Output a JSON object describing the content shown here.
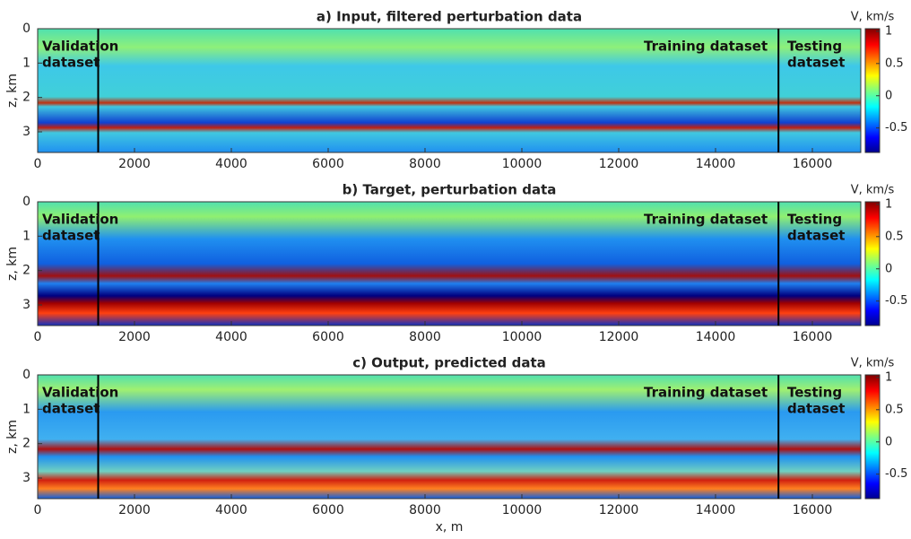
{
  "chart_data": [
    {
      "type": "heatmap",
      "title": "a) Input, filtered perturbation data",
      "ylabel": "z, km",
      "xlim": [
        0,
        17000
      ],
      "ylim": [
        0,
        3.6
      ],
      "y_inverted": true,
      "xticks": [
        0,
        2000,
        4000,
        6000,
        8000,
        10000,
        12000,
        14000,
        16000
      ],
      "yticks": [
        0,
        1,
        2,
        3
      ],
      "colormap": "jet",
      "colorbar": {
        "label": "V, km/s",
        "lim": [
          -0.88,
          1.04
        ],
        "ticks": [
          -0.5,
          0,
          0.5,
          1
        ]
      },
      "vlines": [
        1250,
        15300
      ],
      "annotations": [
        [
          "Validation",
          "dataset"
        ],
        [
          "Training dataset"
        ],
        [
          "Testing",
          "dataset"
        ]
      ]
    },
    {
      "type": "heatmap",
      "title": "b) Target, perturbation data",
      "ylabel": "z, km",
      "xlim": [
        0,
        17000
      ],
      "ylim": [
        0,
        3.6
      ],
      "y_inverted": true,
      "xticks": [
        0,
        2000,
        4000,
        6000,
        8000,
        10000,
        12000,
        14000,
        16000
      ],
      "yticks": [
        0,
        1,
        2,
        3
      ],
      "colormap": "jet",
      "colorbar": {
        "label": "V, km/s",
        "lim": [
          -0.88,
          1.04
        ],
        "ticks": [
          -0.5,
          0,
          0.5,
          1
        ]
      },
      "vlines": [
        1250,
        15300
      ],
      "annotations": [
        [
          "Validation",
          "dataset"
        ],
        [
          "Training dataset"
        ],
        [
          "Testing",
          "dataset"
        ]
      ]
    },
    {
      "type": "heatmap",
      "title": "c) Output, predicted data",
      "ylabel": "z, km",
      "xlabel": "x, m",
      "xlim": [
        0,
        17000
      ],
      "ylim": [
        0,
        3.6
      ],
      "y_inverted": true,
      "xticks": [
        0,
        2000,
        4000,
        6000,
        8000,
        10000,
        12000,
        14000,
        16000
      ],
      "yticks": [
        0,
        1,
        2,
        3
      ],
      "colormap": "jet",
      "colorbar": {
        "label": "V, km/s",
        "lim": [
          -0.88,
          1.04
        ],
        "ticks": [
          -0.5,
          0,
          0.5,
          1
        ]
      },
      "vlines": [
        1250,
        15300
      ],
      "annotations": [
        [
          "Validation",
          "dataset"
        ],
        [
          "Training dataset"
        ],
        [
          "Testing",
          "dataset"
        ]
      ]
    }
  ]
}
